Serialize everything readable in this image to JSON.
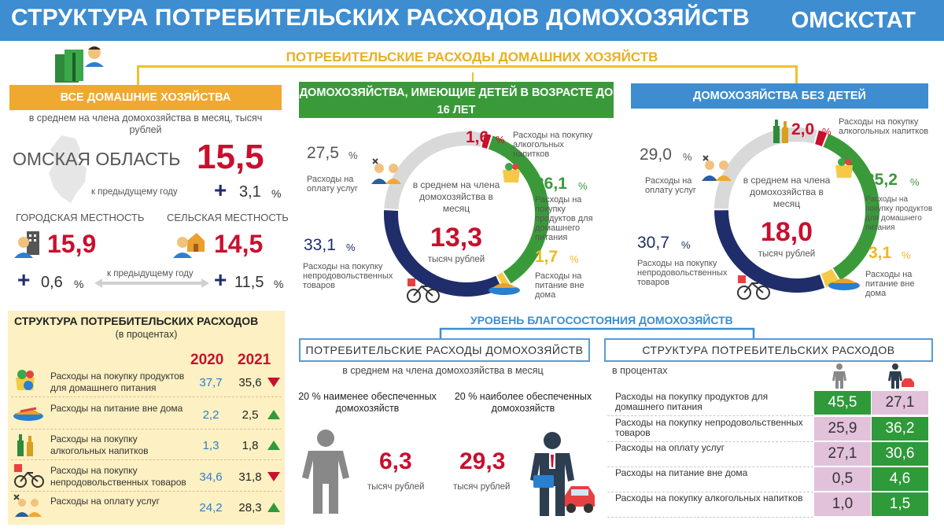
{
  "title": "СТРУКТУРА ПОТРЕБИТЕЛЬСКИХ РАСХОДОВ ДОМОХОЗЯЙСТВ",
  "brand": "ОМСКСТАТ",
  "subtitle": "ПОТРЕБИТЕЛЬСКИЕ РАСХОДЫ ДОМАШНИХ ХОЗЯЙСТВ",
  "colors": {
    "blue": "#3d8dd0",
    "orange": "#f0a830",
    "green": "#3a9a3a",
    "red": "#c8102e",
    "navy": "#1f2d6b",
    "gray": "#d9d9d9",
    "yellow": "#f6c945"
  },
  "all": {
    "header": "ВСЕ ДОМАШНИЕ ХОЗЯЙСТВА",
    "note": "в среднем на члена домохозяйства в месяц, тысяч рублей",
    "region": "ОМСКАЯ ОБЛАСТЬ",
    "region_value": "15,5",
    "prev_label": "к предыдущему году",
    "region_change": "3,1",
    "pct": "%",
    "plus": "+",
    "urban_label": "ГОРОДСКАЯ МЕСТНОСТЬ",
    "rural_label": "СЕЛЬСКАЯ МЕСТНОСТЬ",
    "urban_value": "15,9",
    "rural_value": "14,5",
    "urban_change": "0,6",
    "rural_change": "11,5",
    "prev_label2": "к предыдущему году"
  },
  "kids": {
    "header": "ДОМОХОЗЯЙСТВА, ИМЕЮЩИЕ ДЕТЕЙ В ВОЗРАСТЕ ДО 16 ЛЕТ",
    "center_label": "в среднем на члена домохозяйства в месяц",
    "center_value": "13,3",
    "center_unit": "тысяч рублей",
    "services_value": "27,5",
    "services_label": "Расходы на оплату услуг",
    "alcohol_value": "1,6",
    "alcohol_label": "Расходы на покупку алкогольных напитков",
    "food_value": "36,1",
    "food_label": "Расходы на покупку продуктов для домашнего питания",
    "catering_value": "1,7",
    "catering_label": "Расходы на питание вне дома",
    "nonfood_value": "33,1",
    "nonfood_label": "Расходы на покупку непродовольственных товаров",
    "pct": "%"
  },
  "nokids": {
    "header": "ДОМОХОЗЯЙСТВА БЕЗ ДЕТЕЙ",
    "center_label": "в среднем на члена домохозяйства в месяц",
    "center_value": "18,0",
    "center_unit": "тысяч рублей",
    "services_value": "29,0",
    "services_label": "Расходы на оплату услуг",
    "alcohol_value": "2,0",
    "alcohol_label": "Расходы на покупку алкогольных напитков",
    "food_value": "35,2",
    "food_label": "Расходы на покупку продуктов для домашнего питания",
    "catering_value": "3,1",
    "catering_label": "Расходы на питание вне дома",
    "nonfood_value": "30,7",
    "nonfood_label": "Расходы на покупку непродовольственных товаров",
    "pct": "%"
  },
  "structure": {
    "title": "СТРУКТУРА ПОТРЕБИТЕЛЬСКИХ РАСХОДОВ",
    "subtitle": "(в процентах)",
    "year1": "2020",
    "year2": "2021",
    "rows": [
      {
        "label": "Расходы на покупку продуктов для домашнего питания",
        "v2020": "37,7",
        "v2021": "35,6",
        "trend": "down",
        "icon": "grocery-bag-icon"
      },
      {
        "label": "Расходы на питание вне дома",
        "v2020": "2,2",
        "v2021": "2,5",
        "trend": "up",
        "icon": "food-plate-icon"
      },
      {
        "label": "Расходы на покупку алкогольных напитков",
        "v2020": "1,3",
        "v2021": "1,8",
        "trend": "up",
        "icon": "bottles-icon"
      },
      {
        "label": "Расходы на покупку непродовольственных товаров",
        "v2020": "34,6",
        "v2021": "31,8",
        "trend": "down",
        "icon": "bicycle-icon"
      },
      {
        "label": "Расходы на оплату услуг",
        "v2020": "24,2",
        "v2021": "28,3",
        "trend": "up",
        "icon": "services-people-icon"
      }
    ]
  },
  "welfare": {
    "title": "УРОВЕНЬ БЛАГОСОСТОЯНИЯ ДОМОХОЗЯЙСТВ",
    "box1": "ПОТРЕБИТЕЛЬСКИЕ РАСХОДЫ ДОМОХОЗЯЙСТВ",
    "box1_note": "в среднем на члена домохозяйства в месяц",
    "low_label": "20 % наименее обеспеченных домохозяйств",
    "high_label": "20 % наиболее обеспеченных домохозяйств",
    "low_value": "6,3",
    "high_value": "29,3",
    "unit": "тысяч рублей",
    "box2": "СТРУКТУРА ПОТРЕБИТЕЛЬСКИХ РАСХОДОВ",
    "box2_note": "в процентах",
    "rows": [
      {
        "label": "Расходы на покупку продуктов для домашнего питания",
        "low": "45,5",
        "high": "27,1",
        "low_style": "g",
        "high_style": "p"
      },
      {
        "label": "Расходы на покупку непродовольственных товаров",
        "low": "25,9",
        "high": "36,2",
        "low_style": "p",
        "high_style": "g"
      },
      {
        "label": "Расходы на оплату услуг",
        "low": "27,1",
        "high": "30,6",
        "low_style": "p",
        "high_style": "g"
      },
      {
        "label": "Расходы на питание вне дома",
        "low": "0,5",
        "high": "4,6",
        "low_style": "p",
        "high_style": "g"
      },
      {
        "label": "Расходы на покупку алкогольных напитков",
        "low": "1,0",
        "high": "1,5",
        "low_style": "p",
        "high_style": "g"
      }
    ]
  },
  "chart_data": [
    {
      "type": "pie",
      "categories": [
        "Расходы на покупку продуктов для домашнего питания",
        "Расходы на питание вне дома",
        "Расходы на покупку непродовольственных товаров",
        "Расходы на оплату услуг",
        "Расходы на покупку алкогольных напитков"
      ],
      "values": [
        36.1,
        1.7,
        33.1,
        27.5,
        1.6
      ],
      "title": "ДОМОХОЗЯЙСТВА, ИМЕЮЩИЕ ДЕТЕЙ В ВОЗРАСТЕ ДО 16 ЛЕТ"
    },
    {
      "type": "pie",
      "categories": [
        "Расходы на покупку продуктов для домашнего питания",
        "Расходы на питание вне дома",
        "Расходы на покупку непродовольственных товаров",
        "Расходы на оплату услуг",
        "Расходы на покупку алкогольных напитков"
      ],
      "values": [
        35.2,
        3.1,
        30.7,
        29.0,
        2.0
      ],
      "title": "ДОМОХОЗЯЙСТВА БЕЗ ДЕТЕЙ"
    }
  ]
}
